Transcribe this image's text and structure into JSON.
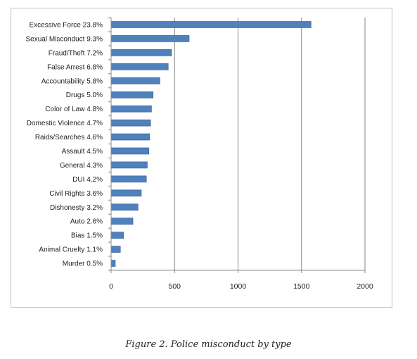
{
  "caption": "Figure 2. Police misconduct by type",
  "chart_data": {
    "type": "bar",
    "orientation": "horizontal",
    "title": "",
    "xlabel": "",
    "ylabel": "",
    "categories": [
      "Excessive Force 23.8%",
      "Sexual Misconduct 9.3%",
      "Fraud/Theft 7.2%",
      "False Arrest 6.8%",
      "Accountability 5.8%",
      "Drugs 5.0%",
      "Color of Law 4.8%",
      "Domestic Violence 4.7%",
      "Raids/Searches 4.6%",
      "Assault 4.5%",
      "General 4.3%",
      "DUI 4.2%",
      "Civil Rights  3.6%",
      "Dishonesty 3.2%",
      "Auto 2.6%",
      "Bias 1.5%",
      "Animal Cruelty 1.1%",
      "Murder 0.5%"
    ],
    "values": [
      1575,
      615,
      476,
      450,
      384,
      331,
      318,
      311,
      304,
      298,
      285,
      278,
      238,
      212,
      172,
      99,
      73,
      33
    ],
    "xlim": [
      0,
      2000
    ],
    "xticks": [
      "0",
      "500",
      "1000",
      "1500",
      "2000"
    ],
    "xtick_values": [
      0,
      500,
      1000,
      1500,
      2000
    ],
    "grid": "vertical",
    "legend": "none",
    "colors": {
      "bar": "#4f81bd",
      "bar_edge": "#2f5a8f",
      "grid": "#878787",
      "axis": "#878787"
    }
  }
}
